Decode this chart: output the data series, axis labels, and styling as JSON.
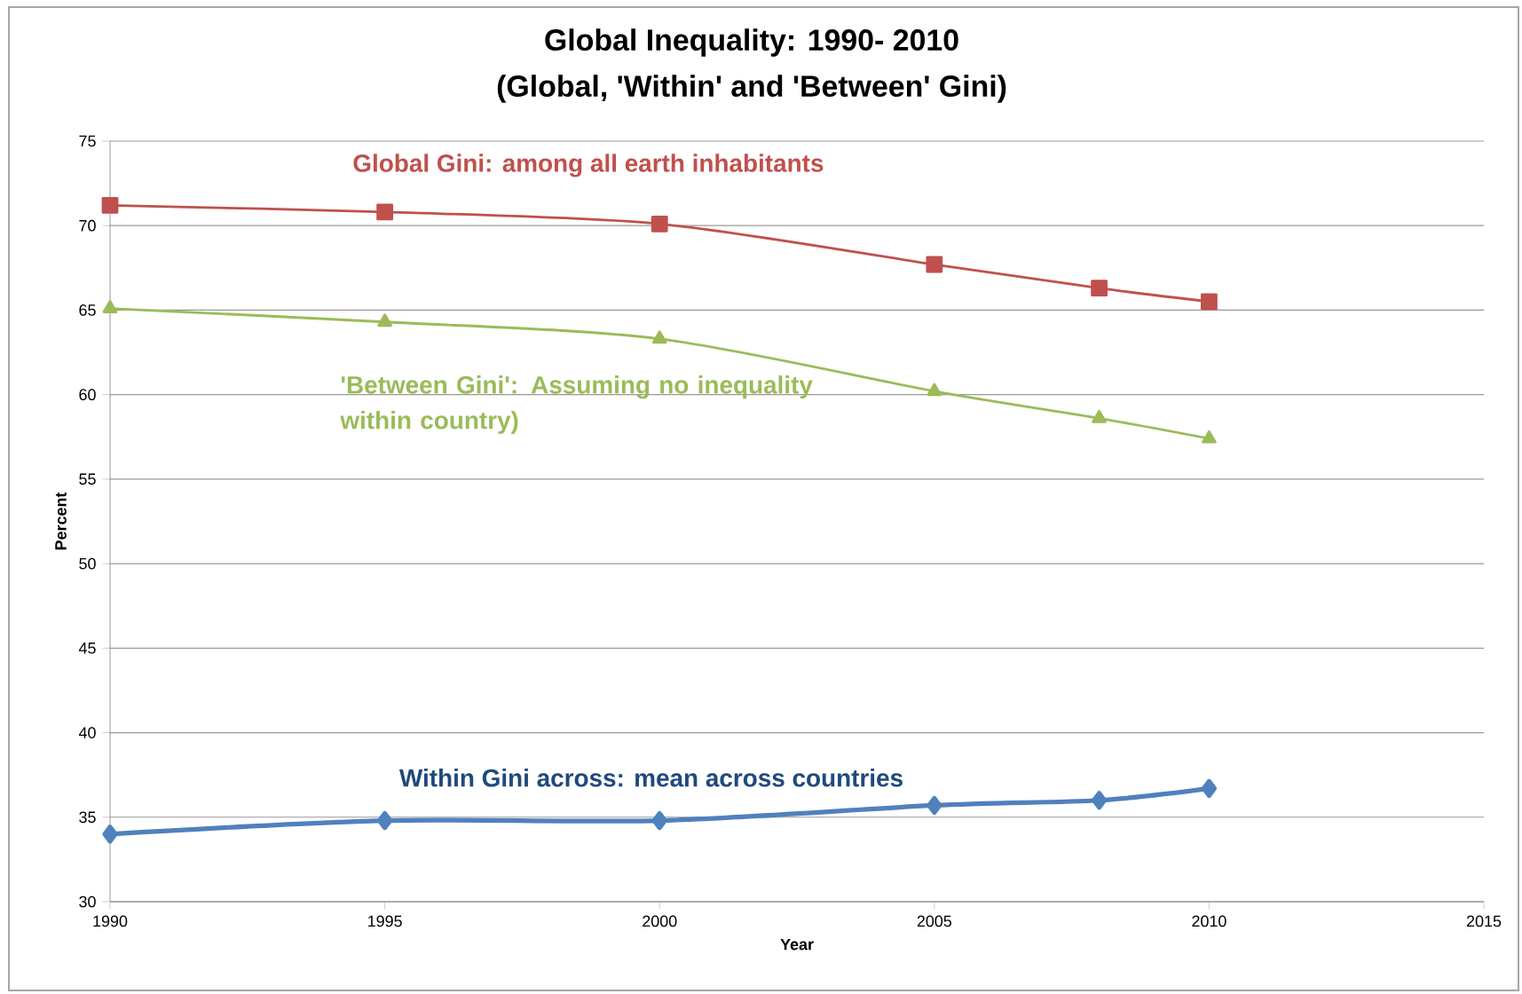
{
  "chart_data": {
    "type": "line",
    "title": "Global Inequality: 1990- 2010",
    "subtitle": "(Global, 'Within'  and 'Between' Gini)",
    "xlabel": "Year",
    "ylabel": "Percent",
    "x": [
      1990,
      1995,
      2000,
      2005,
      2008,
      2010
    ],
    "series": [
      {
        "name": "Global Gini: among all earth inhabitants",
        "color": "#c0504d",
        "marker": "square",
        "values": [
          71.2,
          70.8,
          70.1,
          67.7,
          66.3,
          65.5
        ]
      },
      {
        "name": "'Between Gini': Assuming no inequality within country)",
        "color": "#9bbb59",
        "marker": "triangle",
        "values": [
          65.1,
          64.3,
          63.3,
          60.2,
          58.6,
          57.4
        ]
      },
      {
        "name": "Within  Gini across: mean across  countries",
        "color": "#4f81bd",
        "marker": "diamond",
        "values": [
          34.0,
          34.8,
          34.8,
          35.7,
          36.0,
          36.7
        ]
      }
    ],
    "xlim": [
      1990,
      2015
    ],
    "ylim": [
      30,
      75
    ],
    "xticks": [
      1990,
      1995,
      2000,
      2005,
      2010,
      2015
    ],
    "yticks": [
      30,
      35,
      40,
      45,
      50,
      55,
      60,
      65,
      70,
      75
    ],
    "grid": "y",
    "line_style": "solid"
  }
}
